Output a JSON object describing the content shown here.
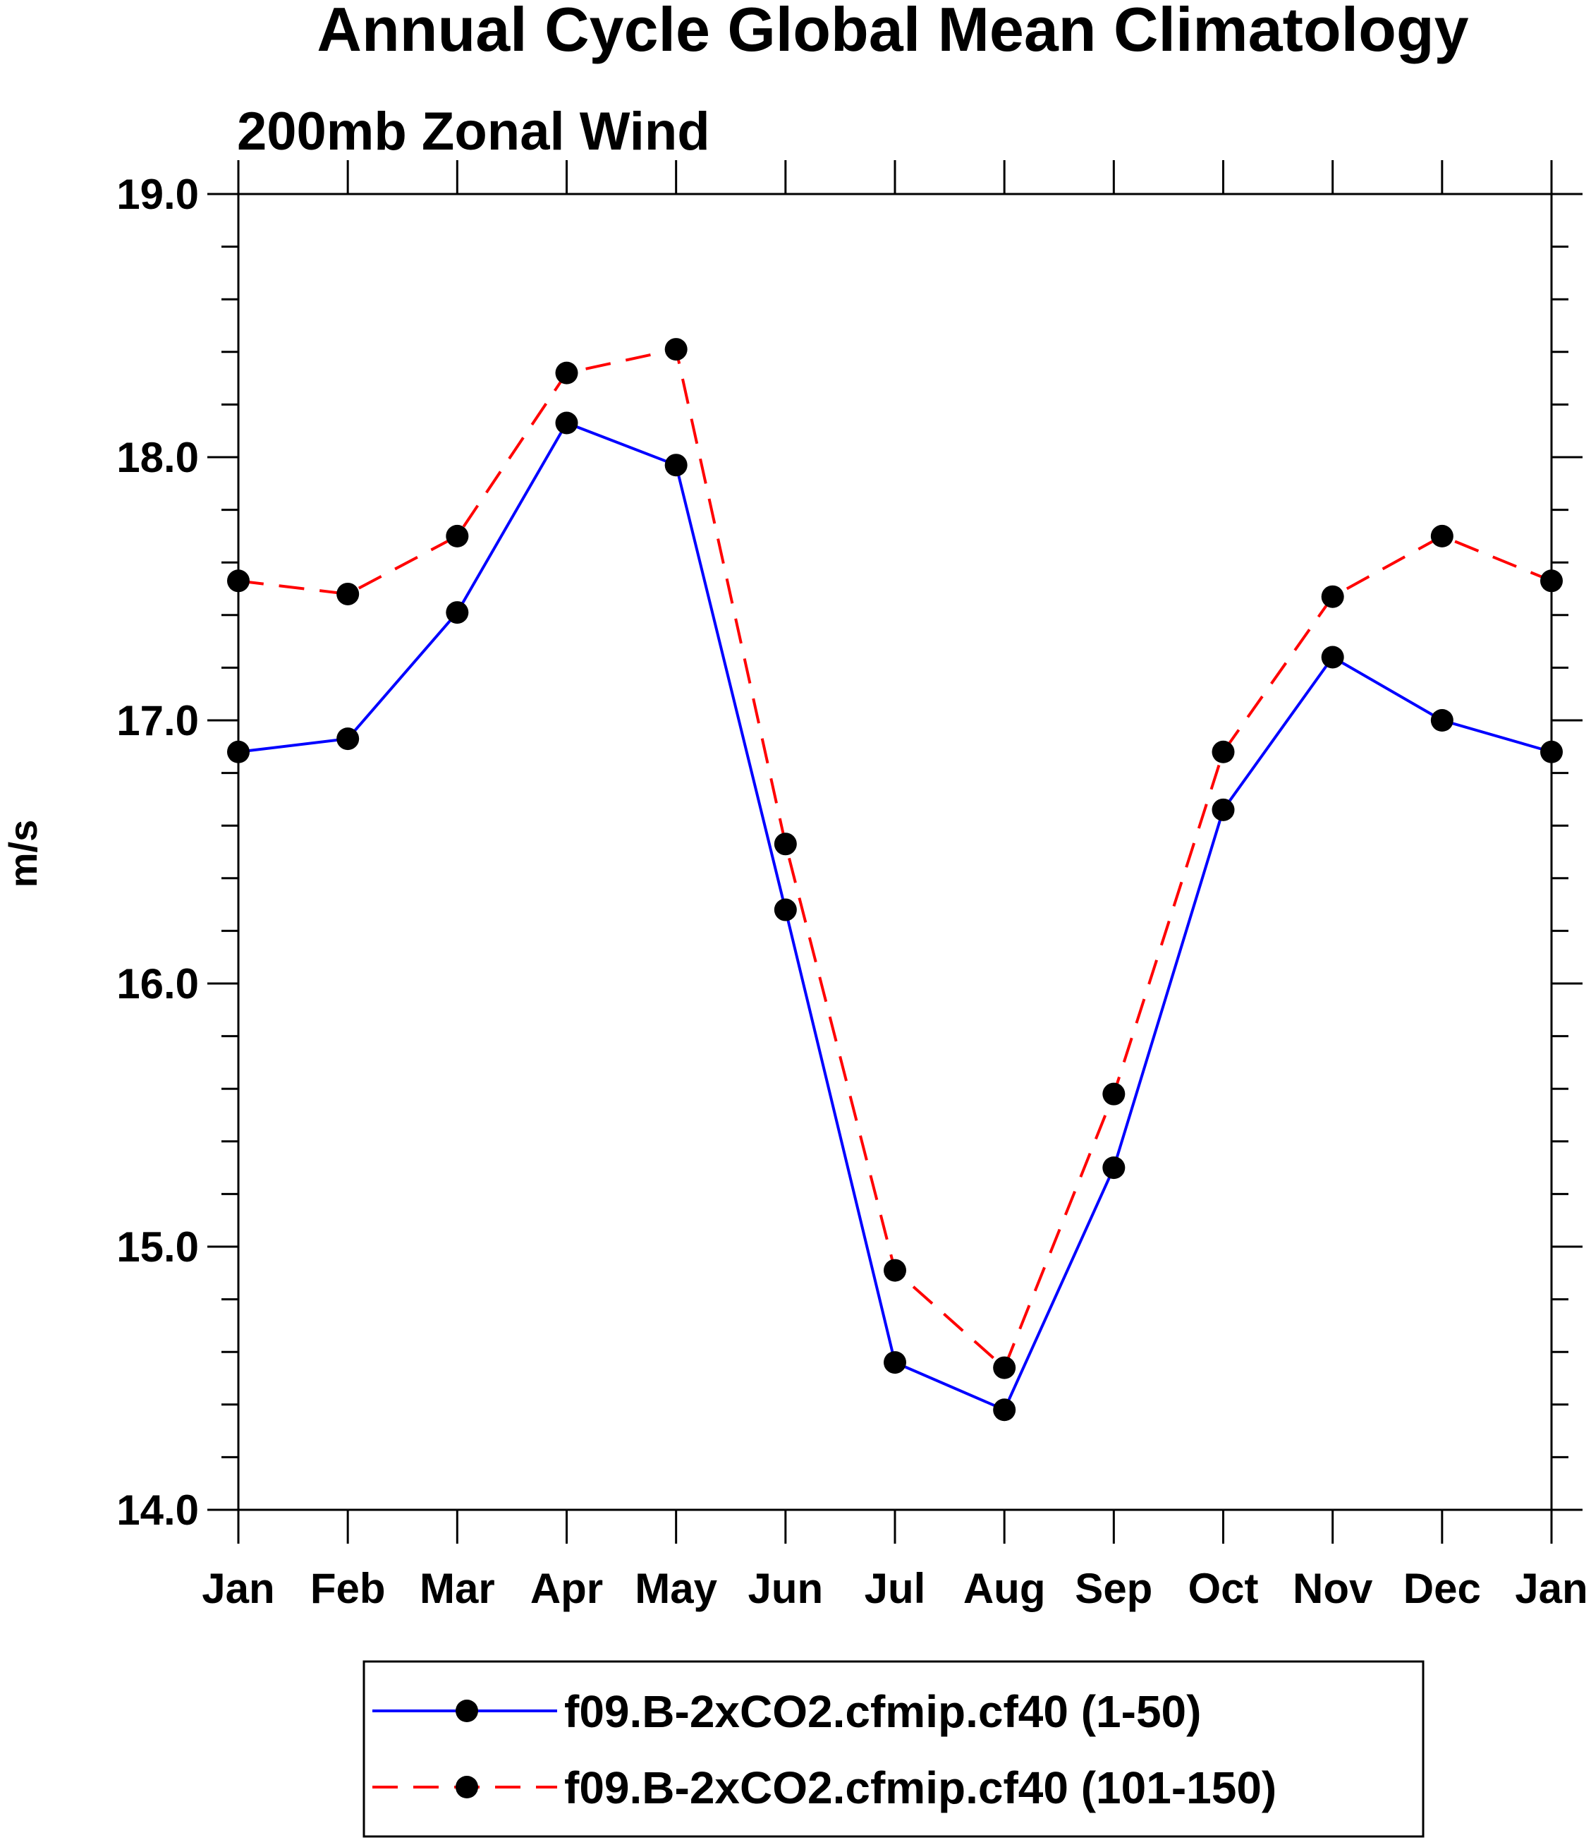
{
  "chart_data": {
    "type": "line",
    "title": "Annual Cycle Global Mean Climatology",
    "subtitle": "200mb Zonal Wind",
    "xlabel": "",
    "ylabel": "m/s",
    "categories": [
      "Jan",
      "Feb",
      "Mar",
      "Apr",
      "May",
      "Jun",
      "Jul",
      "Aug",
      "Sep",
      "Oct",
      "Nov",
      "Dec",
      "Jan"
    ],
    "ylim": [
      14.0,
      19.0
    ],
    "yticks": [
      "14.0",
      "15.0",
      "16.0",
      "17.0",
      "18.0",
      "19.0"
    ],
    "series": [
      {
        "name": "f09.B-2xCO2.cfmip.cf40 (1-50)",
        "color": "#0000ff",
        "line_style": "solid",
        "marker": "filled-circle",
        "values": [
          16.88,
          16.93,
          17.41,
          18.13,
          17.97,
          16.28,
          14.56,
          14.38,
          15.3,
          16.66,
          17.24,
          17.0,
          16.88
        ]
      },
      {
        "name": "f09.B-2xCO2.cfmip.cf40 (101-150)",
        "color": "#ff0000",
        "line_style": "dashed",
        "marker": "filled-circle",
        "values": [
          17.53,
          17.48,
          17.7,
          18.32,
          18.41,
          16.53,
          14.91,
          14.54,
          15.58,
          16.88,
          17.47,
          17.7,
          17.53
        ]
      }
    ],
    "legend_position": "bottom-center",
    "grid": false
  }
}
